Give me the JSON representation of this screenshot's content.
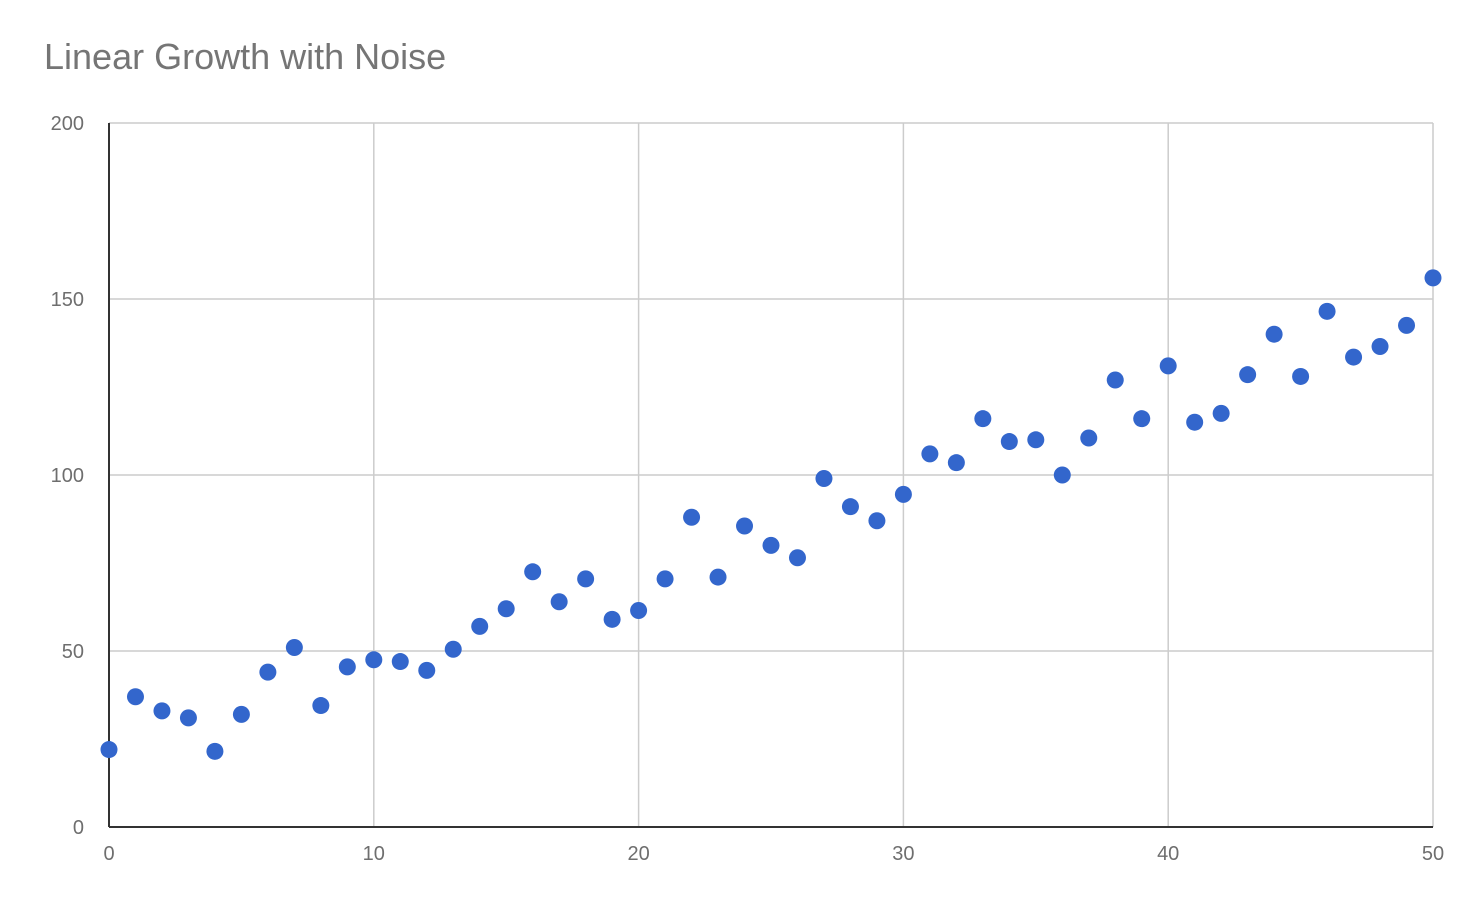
{
  "chart_data": {
    "type": "scatter",
    "title": "Linear Growth with Noise",
    "xlabel": "",
    "ylabel": "",
    "xlim": [
      0,
      50
    ],
    "ylim": [
      0,
      200
    ],
    "x_ticks": [
      0,
      10,
      20,
      30,
      40,
      50
    ],
    "y_ticks": [
      0,
      50,
      100,
      150,
      200
    ],
    "x_tick_labels": [
      "0",
      "10",
      "20",
      "30",
      "40",
      "50"
    ],
    "y_tick_labels": [
      "0",
      "50",
      "100",
      "150",
      "200"
    ],
    "grid": true,
    "legend": "none",
    "point_color": "#3366cc",
    "grid_color": "#cccccc",
    "axis_color": "#333333",
    "series": [
      {
        "x": [
          0,
          1,
          2,
          3,
          4,
          5,
          6,
          7,
          8,
          9,
          10,
          11,
          12,
          13,
          14,
          15,
          16,
          17,
          18,
          19,
          20,
          21,
          22,
          23,
          24,
          25,
          26,
          27,
          28,
          29,
          30,
          31,
          32,
          33,
          34,
          35,
          36,
          37,
          38,
          39,
          40,
          41,
          42,
          43,
          44,
          45,
          46,
          47,
          48,
          49,
          50
        ],
        "y": [
          22,
          37,
          33,
          31,
          21.5,
          32,
          44,
          51,
          34.5,
          45.5,
          47.5,
          47,
          44.5,
          50.5,
          57,
          62,
          72.5,
          64,
          70.5,
          59,
          61.5,
          70.5,
          88,
          71,
          85.5,
          80,
          76.5,
          99,
          91,
          87,
          94.5,
          106,
          103.5,
          116,
          109.5,
          110,
          100,
          110.5,
          127,
          116,
          131,
          115,
          117.5,
          128.5,
          140,
          128,
          146.5,
          133.5,
          136.5,
          142.5,
          156
        ]
      }
    ]
  }
}
